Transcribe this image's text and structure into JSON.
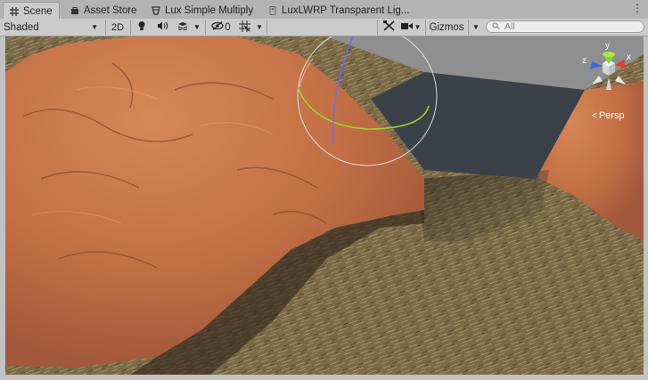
{
  "tabs": [
    {
      "label": "Scene",
      "icon": "scene-grid-icon",
      "active": true
    },
    {
      "label": "Asset Store",
      "icon": "asset-store-icon",
      "active": false
    },
    {
      "label": "Lux Simple Multiply",
      "icon": "shader-icon",
      "active": false
    },
    {
      "label": "LuxLWRP Transparent Lig...",
      "icon": "material-icon",
      "active": false
    }
  ],
  "toolbar": {
    "draw_mode": "Shaded",
    "mode_2d": "2D",
    "hidden_count": "0",
    "gizmos": "Gizmos",
    "search_placeholder": "All"
  },
  "viewport": {
    "projection_label": "Persp",
    "axis_labels": {
      "x": "x",
      "y": "y",
      "z": "z"
    }
  },
  "colors": {
    "rock": "#c5744b",
    "ground": "#7a6a48",
    "cube": "#3a4149",
    "axis_x": "#e53b31",
    "axis_y": "#8ed333",
    "axis_z": "#3a6de0"
  }
}
